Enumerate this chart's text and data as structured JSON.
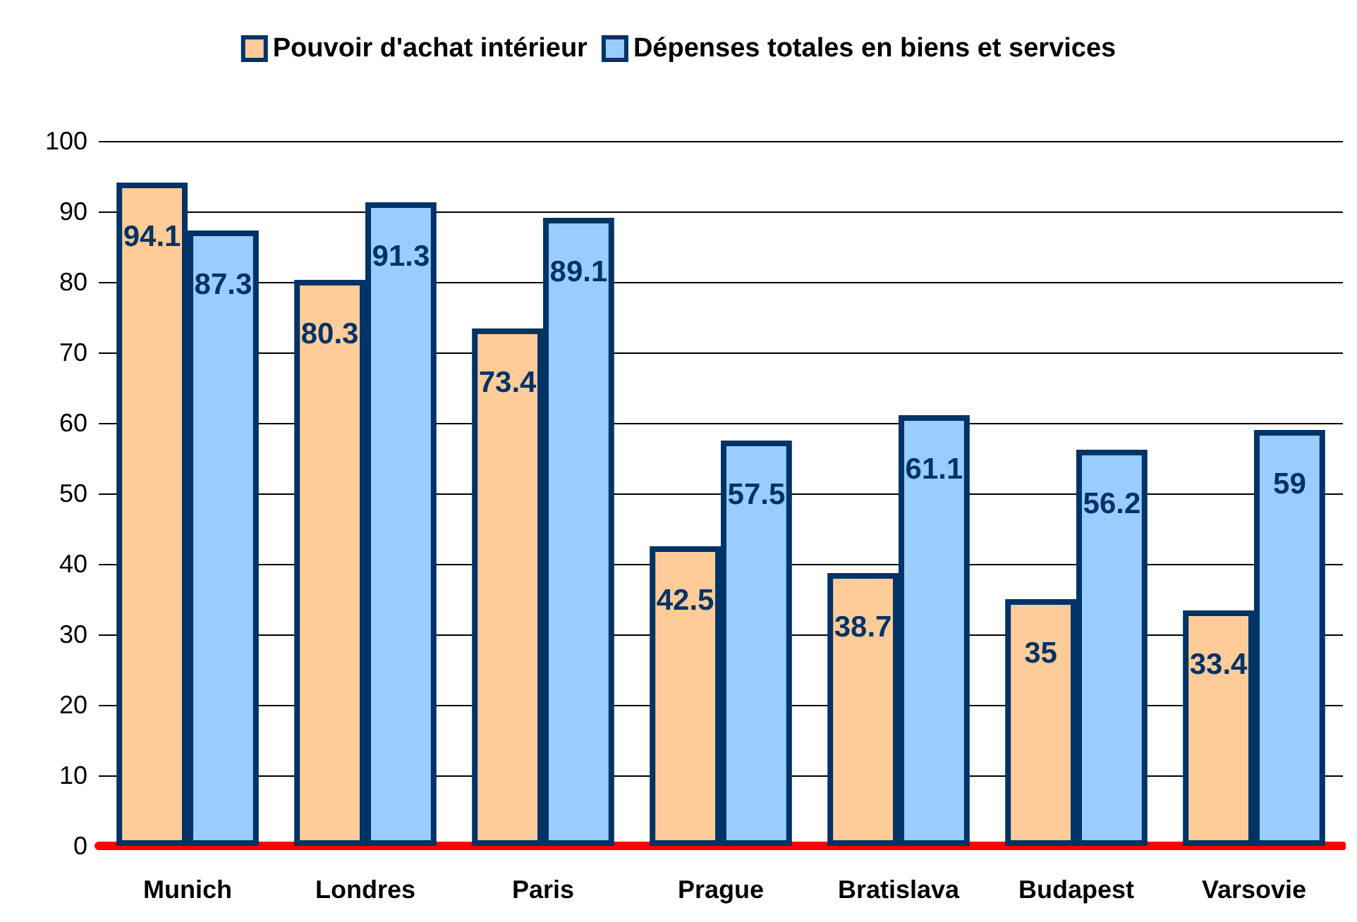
{
  "chart_data": {
    "type": "bar",
    "categories": [
      "Munich",
      "Londres",
      "Paris",
      "Prague",
      "Bratislava",
      "Budapest",
      "Varsovie"
    ],
    "series": [
      {
        "name": "Pouvoir d'achat intérieur",
        "color": "#ffcc99",
        "values": [
          94.1,
          80.3,
          73.4,
          42.5,
          38.7,
          35,
          33.4
        ]
      },
      {
        "name": "Dépenses totales en biens et services",
        "color": "#99ccff",
        "values": [
          87.3,
          91.3,
          89.1,
          57.5,
          61.1,
          56.2,
          59
        ]
      }
    ],
    "ylim": [
      0,
      100
    ],
    "yticks": [
      0,
      10,
      20,
      30,
      40,
      50,
      60,
      70,
      80,
      90,
      100
    ],
    "grid": "y",
    "legend": "top",
    "data_labels": true
  }
}
